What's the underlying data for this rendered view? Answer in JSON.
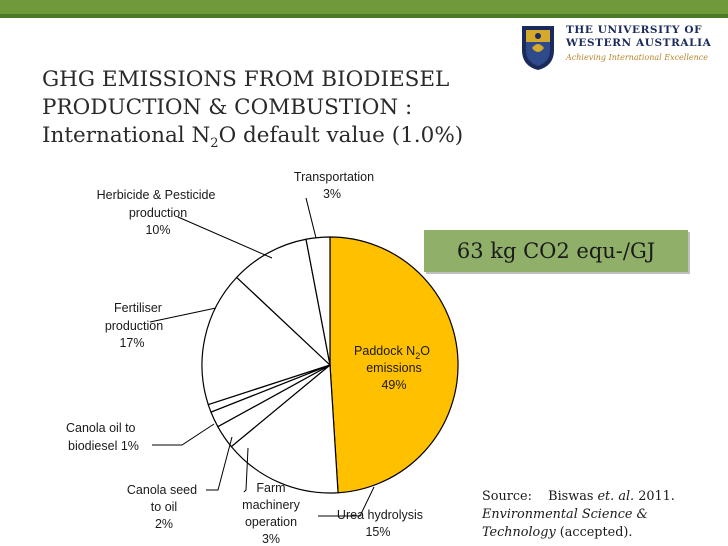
{
  "header": {
    "university_name": "THE UNIVERSITY OF\nWESTERN AUSTRALIA",
    "tagline": "Achieving International Excellence",
    "accent_color": "#6e9a3a"
  },
  "slide": {
    "title_line1": "GHG EMISSIONS FROM BIODIESEL",
    "title_line2": "PRODUCTION & COMBUSTION :",
    "title_line3_prefix": "International N",
    "title_line3_sub": "2",
    "title_line3_suffix": "O default value (1.0%)",
    "total_label": "63 kg CO2 equ-/GJ",
    "source_prefix": "Source:",
    "source_author": "Biswas",
    "source_etal": "et. al.",
    "source_year": "2011.",
    "source_journal": "Environmental Science & Technology",
    "source_status": "(accepted)."
  },
  "chart_data": {
    "type": "pie",
    "title": "",
    "slices": [
      {
        "label": "Paddock N2O emissions",
        "value": 49,
        "color": "#ffc000"
      },
      {
        "label": "Urea hydrolysis",
        "value": 15,
        "color": "#ffffff"
      },
      {
        "label": "Farm machinery operation",
        "value": 3,
        "color": "#ffffff"
      },
      {
        "label": "Canola seed to oil",
        "value": 2,
        "color": "#ffffff"
      },
      {
        "label": "Canola oil to biodiesel",
        "value": 1,
        "color": "#ffffff"
      },
      {
        "label": "Fertiliser production",
        "value": 17,
        "color": "#ffffff"
      },
      {
        "label": "Herbicide & Pesticide production",
        "value": 10,
        "color": "#ffffff"
      },
      {
        "label": "Transportation",
        "value": 3,
        "color": "#ffffff"
      }
    ],
    "labels": {
      "paddock": {
        "l1": "Paddock N",
        "sub": "2",
        "l1b": "O",
        "l2": "emissions",
        "l3": "49%"
      },
      "urea": {
        "l1": "Urea hydrolysis",
        "l2": "15%"
      },
      "farm": {
        "l1": "Farm",
        "l2": "machinery",
        "l3": "operation",
        "l4": "3%"
      },
      "seed": {
        "l1": "Canola seed",
        "l2": "to oil",
        "l3": "2%"
      },
      "oil": {
        "l1": "Canola oil to",
        "l2": "biodiesel 1%"
      },
      "fert": {
        "l1": "Fertiliser",
        "l2": "production",
        "l3": "17%"
      },
      "herb": {
        "l1": "Herbicide & Pesticide",
        "l2": "production",
        "l3": "10%"
      },
      "trans": {
        "l1": "Transportation",
        "l2": "3%"
      }
    }
  }
}
